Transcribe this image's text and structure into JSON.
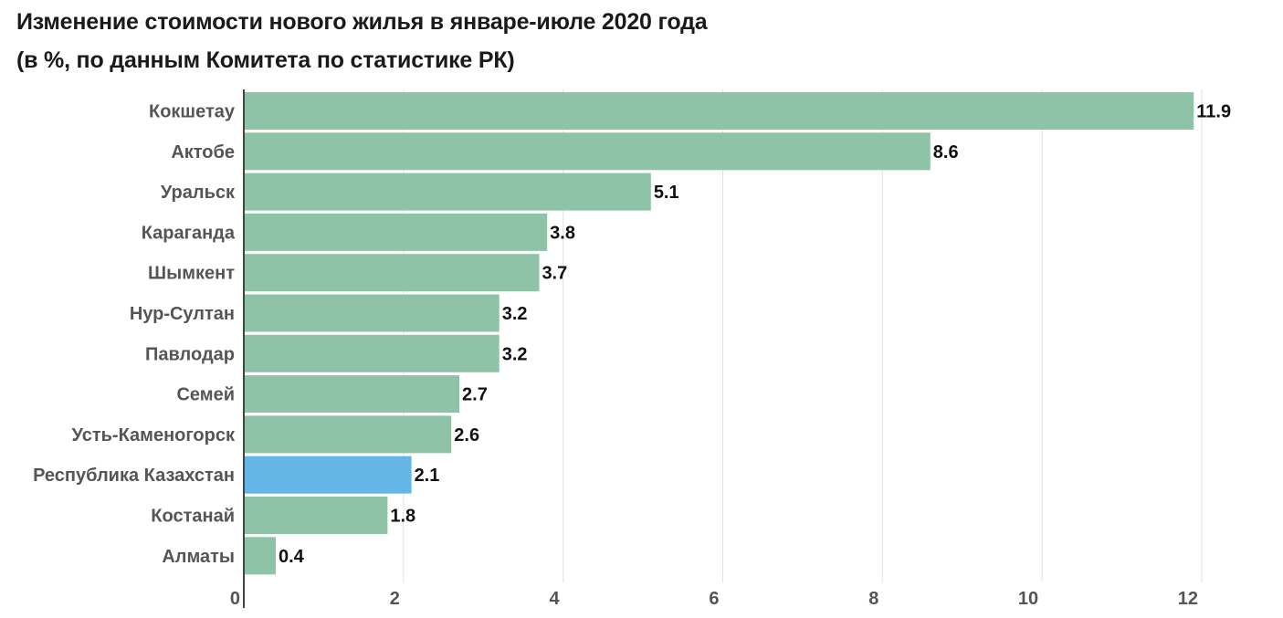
{
  "chart_data": {
    "type": "bar",
    "orientation": "horizontal",
    "title": "Изменение стоимости нового жилья в январе-июле 2020 года",
    "subtitle": "(в %, по данным Комитета по статистике РК)",
    "categories": [
      "Кокшетау",
      "Актобе",
      "Уральск",
      "Караганда",
      "Шымкент",
      "Нур-Султан",
      "Павлодар",
      "Семей",
      "Усть-Каменогорск",
      "Республика Казахстан",
      "Костанай",
      "Алматы"
    ],
    "values": [
      11.9,
      8.6,
      5.1,
      3.8,
      3.7,
      3.2,
      3.2,
      2.7,
      2.6,
      2.1,
      1.8,
      0.4
    ],
    "value_labels": [
      "11.9",
      "8.6",
      "5.1",
      "3.8",
      "3.7",
      "3.2",
      "3.2",
      "2.7",
      "2.6",
      "2.1",
      "1.8",
      "0.4"
    ],
    "highlight_category": "Республика Казахстан",
    "xlim": [
      0,
      12
    ],
    "xticks": [
      "0",
      "2",
      "4",
      "6",
      "8",
      "10",
      "12"
    ],
    "grid": true,
    "colors": {
      "bar": "#8fc3a7",
      "highlight": "#63b6e6",
      "grid": "#e2e2e2",
      "axis": "#444444"
    }
  }
}
